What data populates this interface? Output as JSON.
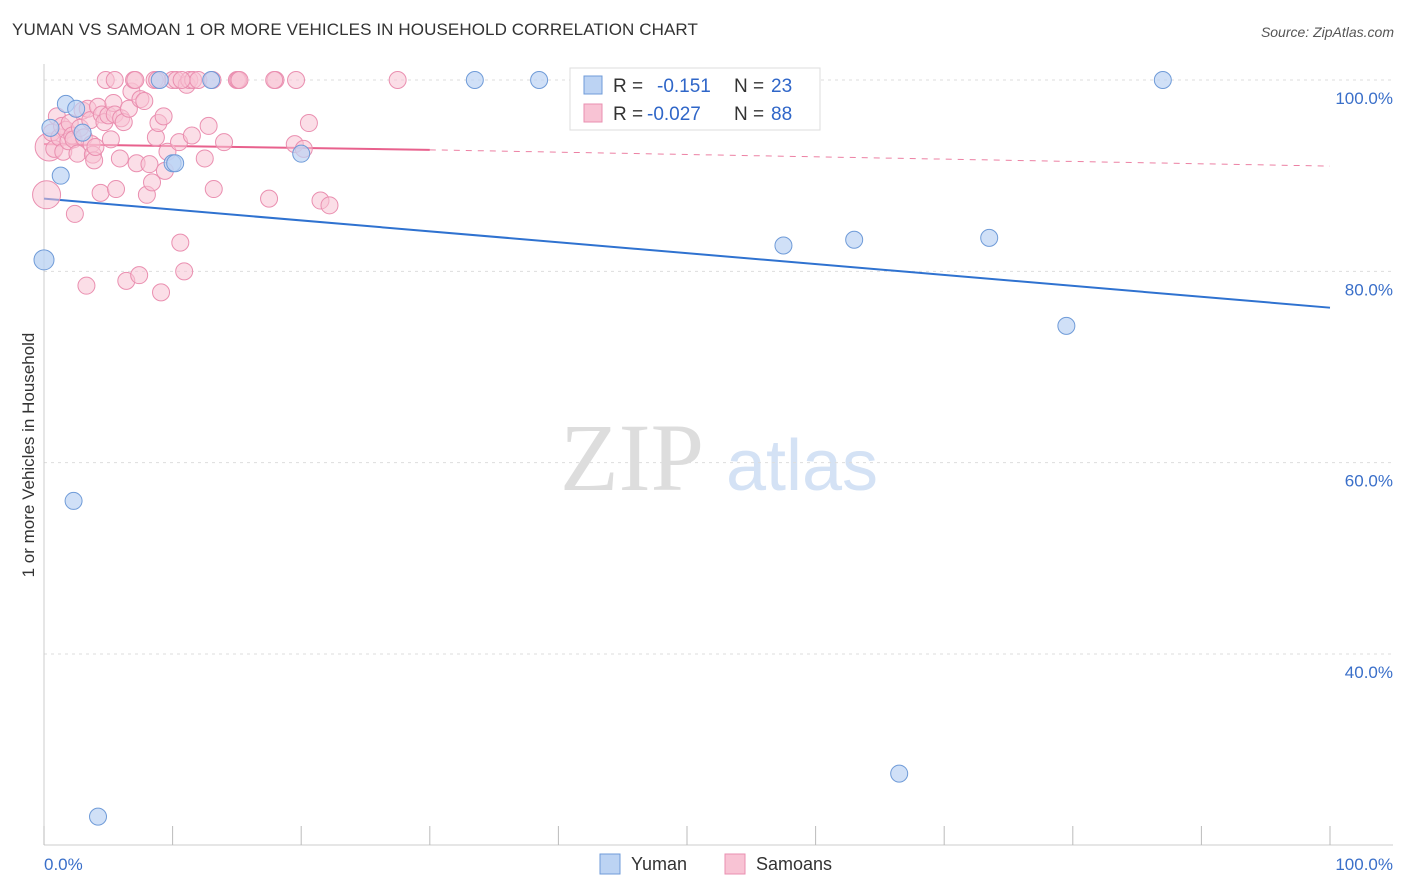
{
  "header": {
    "title": "YUMAN VS SAMOAN 1 OR MORE VEHICLES IN HOUSEHOLD CORRELATION CHART",
    "source": "Source: ZipAtlas.com"
  },
  "watermark": {
    "zip": "ZIP",
    "atlas": "atlas"
  },
  "colors": {
    "yuman_fill": "#bcd3f3",
    "yuman_stroke": "#6f9bd8",
    "yuman_line": "#2f72d0",
    "samoan_fill": "#f8c3d4",
    "samoan_stroke": "#ea8fb0",
    "samoan_line": "#e8618d",
    "grid": "#dddddd",
    "tick_label": "#3a6fc9"
  },
  "legend": {
    "r_label": "R =",
    "n_label": "N =",
    "rows": [
      {
        "series": "Yuman",
        "r": "-0.151",
        "n": "23"
      },
      {
        "series": "Samoans",
        "r": "-0.027",
        "n": "88"
      }
    ]
  },
  "chart_data": {
    "type": "scatter",
    "title": "YUMAN VS SAMOAN 1 OR MORE VEHICLES IN HOUSEHOLD CORRELATION CHART",
    "xlabel": "",
    "ylabel": "1 or more Vehicles in Household",
    "xlim": [
      0,
      100
    ],
    "ylim": [
      20,
      102
    ],
    "x_tick_labels": [
      "0.0%",
      "100.0%"
    ],
    "y_ticks": [
      40,
      60,
      80,
      100
    ],
    "y_tick_labels": [
      "40.0%",
      "60.0%",
      "80.0%",
      "100.0%"
    ],
    "series": [
      {
        "name": "Yuman",
        "points": [
          [
            0.5,
            95.0
          ],
          [
            1.3,
            90.0
          ],
          [
            1.7,
            97.5
          ],
          [
            2.3,
            56.0
          ],
          [
            2.5,
            97.0
          ],
          [
            3.0,
            94.5
          ],
          [
            4.2,
            23.0
          ],
          [
            9.0,
            100.0
          ],
          [
            10.0,
            91.3
          ],
          [
            10.2,
            91.3
          ],
          [
            13.0,
            100.0
          ],
          [
            20.0,
            92.3
          ],
          [
            33.5,
            100.0
          ],
          [
            38.5,
            100.0
          ],
          [
            51.0,
            100.0
          ],
          [
            51.5,
            100.0
          ],
          [
            51.2,
            100.0
          ],
          [
            57.5,
            82.7
          ],
          [
            63.0,
            83.3
          ],
          [
            66.5,
            27.5
          ],
          [
            73.5,
            83.5
          ],
          [
            79.5,
            74.3
          ],
          [
            87.0,
            100.0
          ]
        ],
        "trend": {
          "x": [
            0,
            100
          ],
          "y": [
            87.6,
            76.2
          ]
        }
      },
      {
        "name": "Samoans",
        "points": [
          [
            0.2,
            88.0
          ],
          [
            0.4,
            93.0
          ],
          [
            0.6,
            94.5
          ],
          [
            0.8,
            92.8
          ],
          [
            1.0,
            96.2
          ],
          [
            1.2,
            94.0
          ],
          [
            1.4,
            95.2
          ],
          [
            1.5,
            92.5
          ],
          [
            1.7,
            94.8
          ],
          [
            1.9,
            93.6
          ],
          [
            2.0,
            95.5
          ],
          [
            2.2,
            94.2
          ],
          [
            2.3,
            93.8
          ],
          [
            2.4,
            86.0
          ],
          [
            2.6,
            92.3
          ],
          [
            2.8,
            95.0
          ],
          [
            3.0,
            96.8
          ],
          [
            3.1,
            94.0
          ],
          [
            3.3,
            78.5
          ],
          [
            3.4,
            97.0
          ],
          [
            3.6,
            95.8
          ],
          [
            3.7,
            93.3
          ],
          [
            3.8,
            92.2
          ],
          [
            3.9,
            91.6
          ],
          [
            4.0,
            93.0
          ],
          [
            4.2,
            97.2
          ],
          [
            4.4,
            88.2
          ],
          [
            4.5,
            96.4
          ],
          [
            4.7,
            95.6
          ],
          [
            4.8,
            100.0
          ],
          [
            5.0,
            96.3
          ],
          [
            5.2,
            93.8
          ],
          [
            5.4,
            97.6
          ],
          [
            5.5,
            96.4
          ],
          [
            5.6,
            88.6
          ],
          [
            5.9,
            91.8
          ],
          [
            6.0,
            96.0
          ],
          [
            6.2,
            95.6
          ],
          [
            6.4,
            79.0
          ],
          [
            6.6,
            97.0
          ],
          [
            6.8,
            98.8
          ],
          [
            7.0,
            100.0
          ],
          [
            7.2,
            91.3
          ],
          [
            7.4,
            79.6
          ],
          [
            7.5,
            98.0
          ],
          [
            7.8,
            97.8
          ],
          [
            8.0,
            88.0
          ],
          [
            8.2,
            91.2
          ],
          [
            8.4,
            89.3
          ],
          [
            8.6,
            100.0
          ],
          [
            8.7,
            94.0
          ],
          [
            8.9,
            95.5
          ],
          [
            9.1,
            77.8
          ],
          [
            9.3,
            96.2
          ],
          [
            9.4,
            90.5
          ],
          [
            9.6,
            92.5
          ],
          [
            10.0,
            100.0
          ],
          [
            10.3,
            100.0
          ],
          [
            10.5,
            93.5
          ],
          [
            10.6,
            83.0
          ],
          [
            10.9,
            80.0
          ],
          [
            11.1,
            99.5
          ],
          [
            11.3,
            100.0
          ],
          [
            11.5,
            94.2
          ],
          [
            11.6,
            100.0
          ],
          [
            12.0,
            100.0
          ],
          [
            12.5,
            91.8
          ],
          [
            12.8,
            95.2
          ],
          [
            13.2,
            88.6
          ],
          [
            14.0,
            93.5
          ],
          [
            15.0,
            100.0
          ],
          [
            17.5,
            87.6
          ],
          [
            19.5,
            93.3
          ],
          [
            20.2,
            92.8
          ],
          [
            20.6,
            95.5
          ],
          [
            21.5,
            87.4
          ],
          [
            22.2,
            86.9
          ],
          [
            27.5,
            100.0
          ],
          [
            18.0,
            100.0
          ],
          [
            17.9,
            100.0
          ],
          [
            10.7,
            100.0
          ],
          [
            15.1,
            100.0
          ],
          [
            15.2,
            100.0
          ],
          [
            19.6,
            100.0
          ],
          [
            7.1,
            100.0
          ],
          [
            5.5,
            100.0
          ],
          [
            8.8,
            100.0
          ],
          [
            13.1,
            100.0
          ]
        ],
        "trend_solid": {
          "x": [
            0,
            30
          ],
          "y": [
            93.3,
            92.7
          ]
        },
        "trend_dashed": {
          "x": [
            30,
            100
          ],
          "y": [
            92.7,
            91.0
          ]
        }
      }
    ]
  }
}
